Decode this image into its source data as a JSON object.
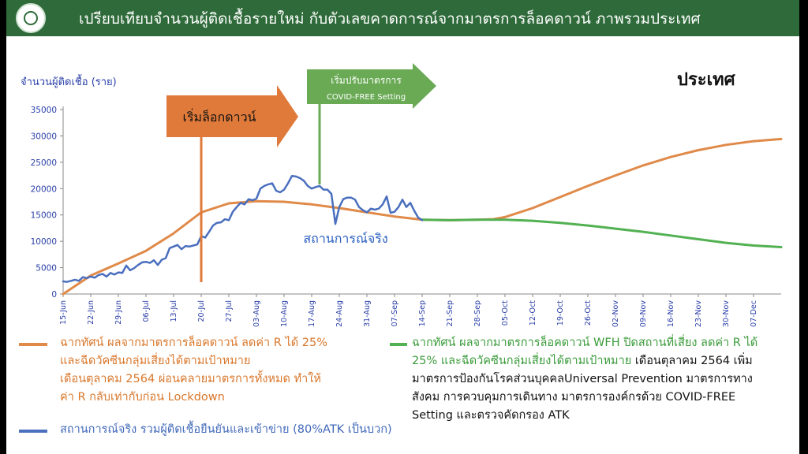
{
  "header": {
    "title": "เปรียบเทียบจำนวนผู้ติดเชื้อรายใหม่ กับตัวเลขคาดการณ์จากมาตรการล็อคดาวน์ ภาพรวมประเทศ"
  },
  "colors": {
    "header_bg": "#2f6b3a",
    "orange": "#e08a4a",
    "blue": "#4a6fbe",
    "green": "#52b152",
    "arrow_orange": "#e07a3a",
    "arrow_green": "#6aaa55"
  },
  "chart_data": {
    "type": "line",
    "title": "ประเทศ",
    "ylabel": "จำนวนผู้ติดเชื้อ (ราย)",
    "ylim": [
      0,
      35000
    ],
    "yticks": [
      0,
      5000,
      10000,
      15000,
      20000,
      25000,
      30000,
      35000
    ],
    "x_start": "2021-06-15",
    "x_end": "2021-12-14",
    "xticks": [
      "15-Jun",
      "22-Jun",
      "29-Jun",
      "06-Jul",
      "13-Jul",
      "20-Jul",
      "27-Jul",
      "03-Aug",
      "10-Aug",
      "17-Aug",
      "24-Aug",
      "31-Aug",
      "07-Sep",
      "14-Sep",
      "21-Sep",
      "28-Sep",
      "05-Oct",
      "12-Oct",
      "19-Oct",
      "26-Oct",
      "02-Nov",
      "09-Nov",
      "16-Nov",
      "23-Nov",
      "30-Nov",
      "07-Dec"
    ],
    "grid": false,
    "legend": "bottom",
    "annotations": [
      {
        "label": "เริ่มล็อกดาวน์",
        "date": "2021-07-20"
      },
      {
        "label": "เริ่มปรับมาตรการ",
        "sublabel": "COVID-FREE Setting",
        "date": "2021-08-19"
      },
      {
        "label": "สถานการณ์จริง",
        "date": "2021-09-07",
        "y": 11000
      }
    ],
    "series": [
      {
        "name": "orange",
        "points": [
          [
            "2021-06-15",
            0
          ],
          [
            "2021-06-18",
            1500
          ],
          [
            "2021-06-22",
            3500
          ],
          [
            "2021-06-29",
            5800
          ],
          [
            "2021-07-06",
            8200
          ],
          [
            "2021-07-13",
            11500
          ],
          [
            "2021-07-20",
            15500
          ],
          [
            "2021-07-27",
            17200
          ],
          [
            "2021-08-03",
            17600
          ],
          [
            "2021-08-10",
            17500
          ],
          [
            "2021-08-17",
            17000
          ],
          [
            "2021-08-24",
            16300
          ],
          [
            "2021-08-31",
            15500
          ],
          [
            "2021-09-07",
            14700
          ],
          [
            "2021-09-14",
            14100
          ],
          [
            "2021-09-21",
            14000
          ],
          [
            "2021-09-28",
            14100
          ],
          [
            "2021-10-02",
            14200
          ],
          [
            "2021-10-05",
            14600
          ],
          [
            "2021-10-12",
            16300
          ],
          [
            "2021-10-19",
            18400
          ],
          [
            "2021-10-26",
            20500
          ],
          [
            "2021-11-02",
            22500
          ],
          [
            "2021-11-09",
            24400
          ],
          [
            "2021-11-16",
            26000
          ],
          [
            "2021-11-23",
            27300
          ],
          [
            "2021-11-30",
            28300
          ],
          [
            "2021-12-07",
            29000
          ],
          [
            "2021-12-14",
            29400
          ]
        ]
      },
      {
        "name": "green",
        "points": [
          [
            "2021-09-14",
            14100
          ],
          [
            "2021-09-21",
            14000
          ],
          [
            "2021-09-28",
            14100
          ],
          [
            "2021-10-05",
            14100
          ],
          [
            "2021-10-12",
            13900
          ],
          [
            "2021-10-19",
            13500
          ],
          [
            "2021-10-26",
            13000
          ],
          [
            "2021-11-02",
            12400
          ],
          [
            "2021-11-09",
            11800
          ],
          [
            "2021-11-16",
            11100
          ],
          [
            "2021-11-23",
            10400
          ],
          [
            "2021-11-30",
            9700
          ],
          [
            "2021-12-07",
            9200
          ],
          [
            "2021-12-14",
            8900
          ]
        ]
      },
      {
        "name": "blue",
        "points": [
          [
            "2021-06-15",
            2400
          ],
          [
            "2021-06-16",
            2300
          ],
          [
            "2021-06-17",
            2500
          ],
          [
            "2021-06-18",
            2700
          ],
          [
            "2021-06-19",
            2500
          ],
          [
            "2021-06-20",
            3200
          ],
          [
            "2021-06-21",
            3000
          ],
          [
            "2021-06-22",
            3300
          ],
          [
            "2021-06-23",
            3100
          ],
          [
            "2021-06-24",
            3600
          ],
          [
            "2021-06-25",
            3800
          ],
          [
            "2021-06-26",
            3300
          ],
          [
            "2021-06-27",
            4000
          ],
          [
            "2021-06-28",
            3700
          ],
          [
            "2021-06-29",
            4100
          ],
          [
            "2021-06-30",
            4000
          ],
          [
            "2021-07-01",
            5400
          ],
          [
            "2021-07-02",
            4500
          ],
          [
            "2021-07-03",
            4900
          ],
          [
            "2021-07-04",
            5500
          ],
          [
            "2021-07-05",
            6000
          ],
          [
            "2021-07-06",
            6100
          ],
          [
            "2021-07-07",
            5900
          ],
          [
            "2021-07-08",
            6400
          ],
          [
            "2021-07-09",
            5500
          ],
          [
            "2021-07-10",
            6500
          ],
          [
            "2021-07-11",
            6800
          ],
          [
            "2021-07-12",
            8700
          ],
          [
            "2021-07-13",
            9000
          ],
          [
            "2021-07-14",
            9300
          ],
          [
            "2021-07-15",
            8500
          ],
          [
            "2021-07-16",
            9100
          ],
          [
            "2021-07-17",
            9000
          ],
          [
            "2021-07-18",
            9200
          ],
          [
            "2021-07-19",
            9400
          ],
          [
            "2021-07-20",
            11000
          ],
          [
            "2021-07-21",
            10700
          ],
          [
            "2021-07-22",
            11800
          ],
          [
            "2021-07-23",
            13000
          ],
          [
            "2021-07-24",
            13500
          ],
          [
            "2021-07-25",
            13600
          ],
          [
            "2021-07-26",
            14200
          ],
          [
            "2021-07-27",
            14000
          ],
          [
            "2021-07-28",
            15600
          ],
          [
            "2021-07-29",
            16500
          ],
          [
            "2021-07-30",
            17300
          ],
          [
            "2021-07-31",
            17000
          ],
          [
            "2021-08-01",
            18000
          ],
          [
            "2021-08-02",
            17800
          ],
          [
            "2021-08-03",
            18100
          ],
          [
            "2021-08-04",
            20000
          ],
          [
            "2021-08-05",
            20500
          ],
          [
            "2021-08-06",
            20800
          ],
          [
            "2021-08-07",
            21000
          ],
          [
            "2021-08-08",
            19600
          ],
          [
            "2021-08-09",
            19300
          ],
          [
            "2021-08-10",
            19800
          ],
          [
            "2021-08-11",
            21000
          ],
          [
            "2021-08-12",
            22400
          ],
          [
            "2021-08-13",
            22300
          ],
          [
            "2021-08-14",
            22000
          ],
          [
            "2021-08-15",
            21500
          ],
          [
            "2021-08-16",
            20500
          ],
          [
            "2021-08-17",
            20000
          ],
          [
            "2021-08-18",
            20300
          ],
          [
            "2021-08-19",
            20500
          ],
          [
            "2021-08-20",
            19800
          ],
          [
            "2021-08-21",
            19800
          ],
          [
            "2021-08-22",
            19000
          ],
          [
            "2021-08-23",
            13300
          ],
          [
            "2021-08-24",
            16500
          ],
          [
            "2021-08-25",
            18000
          ],
          [
            "2021-08-26",
            18300
          ],
          [
            "2021-08-27",
            18300
          ],
          [
            "2021-08-28",
            17900
          ],
          [
            "2021-08-29",
            16500
          ],
          [
            "2021-08-30",
            15900
          ],
          [
            "2021-08-31",
            15500
          ],
          [
            "2021-09-01",
            16200
          ],
          [
            "2021-09-02",
            16000
          ],
          [
            "2021-09-03",
            16200
          ],
          [
            "2021-09-04",
            17000
          ],
          [
            "2021-09-05",
            18500
          ],
          [
            "2021-09-06",
            15400
          ],
          [
            "2021-09-07",
            15600
          ],
          [
            "2021-09-08",
            16500
          ],
          [
            "2021-09-09",
            17900
          ],
          [
            "2021-09-10",
            16500
          ],
          [
            "2021-09-11",
            17300
          ],
          [
            "2021-09-12",
            15800
          ],
          [
            "2021-09-13",
            14500
          ],
          [
            "2021-09-14",
            14000
          ]
        ]
      }
    ]
  },
  "legend": {
    "orange_lines": [
      "ฉากทัศน์ ผลจากมาตรการล็อคดาวน์ ลดค่า R ได้ 25%",
      "และฉีดวัคซีนกลุ่มเสี่ยงได้ตามเป้าหมาย",
      "เดือนตุลาคม 2564 ผ่อนคลายมาตรการทั้งหมด ทำให้",
      "ค่า R กลับเท่ากับก่อน Lockdown"
    ],
    "blue": "สถานการณ์จริง รวมผู้ติดเชื้อยืนยันและเข้าข่าย (80%ATK เป็นบวก)",
    "green_highlight_1": "ฉากทัศน์ ผลจากมาตรการล็อคดาวน์ WFH ปิดสถานที่เสี่ยง ลดค่า R ได้",
    "green_highlight_2": "25% และฉีดวัคซีนกลุ่มเสี่ยงได้ตามเป้าหมาย",
    "green_rest_1": " เดือนตุลาคม 2564 เพิ่ม",
    "green_rest_lines": [
      "มาตรการป้องกันโรคส่วนบุคคลUniversal Prevention มาตรการทาง",
      "สังคม การควบคุมการเดินทาง มาตรการองค์กรด้วย COVID-FREE",
      "Setting และตรวจคัดกรอง ATK"
    ]
  }
}
